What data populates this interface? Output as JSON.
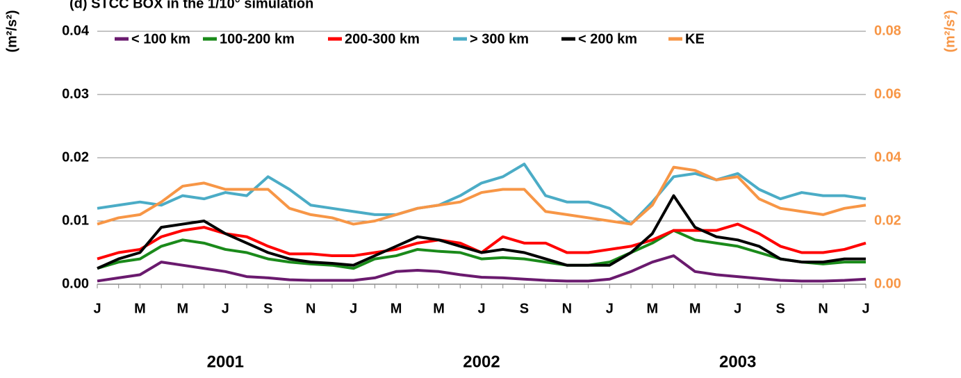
{
  "chart_data": {
    "type": "line",
    "title": "(d)  STCC BOX in the 1/10° simulation",
    "y_label": "(m²/s²)",
    "y2_label": "(m²/s²)",
    "categories": [
      "J",
      null,
      "M",
      null,
      "M",
      null,
      "J",
      null,
      "S",
      null,
      "N",
      null,
      "J",
      null,
      "M",
      null,
      "M",
      null,
      "J",
      null,
      "S",
      null,
      "N",
      null,
      "J",
      null,
      "M",
      null,
      "M",
      null,
      "J",
      null,
      "S",
      null,
      "N",
      null,
      "J"
    ],
    "year_labels": [
      "2001",
      "2002",
      "2003"
    ],
    "ylim": [
      0,
      0.04
    ],
    "yticks": [
      {
        "value": 0,
        "label": "0.00"
      },
      {
        "value": 0.01,
        "label": "0.01"
      },
      {
        "value": 0.02,
        "label": "0.02"
      },
      {
        "value": 0.03,
        "label": "0.03"
      },
      {
        "value": 0.04,
        "label": "0.04"
      }
    ],
    "y2lim": [
      0,
      0.08
    ],
    "y2ticks": [
      {
        "value": 0,
        "label": "0.00"
      },
      {
        "value": 0.02,
        "label": "0.02"
      },
      {
        "value": 0.04,
        "label": "0.04"
      },
      {
        "value": 0.06,
        "label": "0.06"
      },
      {
        "value": 0.08,
        "label": "0.08"
      }
    ],
    "y2_color": "#f79646",
    "grid": true,
    "legend": "top",
    "series": [
      {
        "name": "< 100 km",
        "color": "#6a1a6e",
        "values": [
          0.0005,
          0.001,
          0.0015,
          0.0035,
          0.003,
          0.0025,
          0.002,
          0.0012,
          0.001,
          0.0007,
          0.0006,
          0.0006,
          0.0006,
          0.001,
          0.002,
          0.0022,
          0.002,
          0.0015,
          0.0011,
          0.001,
          0.0008,
          0.0006,
          0.0005,
          0.0005,
          0.0008,
          0.002,
          0.0035,
          0.0045,
          0.002,
          0.0015,
          0.0012,
          0.0009,
          0.0006,
          0.0005,
          0.0005,
          0.0006,
          0.0008
        ]
      },
      {
        "name": "100-200 km",
        "color": "#1a8a1a",
        "values": [
          0.0025,
          0.0035,
          0.004,
          0.006,
          0.007,
          0.0065,
          0.0055,
          0.005,
          0.004,
          0.0035,
          0.0032,
          0.003,
          0.0025,
          0.004,
          0.0045,
          0.0055,
          0.0052,
          0.005,
          0.004,
          0.0042,
          0.004,
          0.0035,
          0.003,
          0.003,
          0.0035,
          0.005,
          0.0065,
          0.0085,
          0.007,
          0.0065,
          0.006,
          0.005,
          0.004,
          0.0035,
          0.0032,
          0.0035,
          0.0035
        ]
      },
      {
        "name": "200-300 km",
        "color": "#ff0000",
        "values": [
          0.004,
          0.005,
          0.0055,
          0.0075,
          0.0085,
          0.009,
          0.008,
          0.0075,
          0.006,
          0.0048,
          0.0048,
          0.0045,
          0.0045,
          0.005,
          0.0055,
          0.0065,
          0.007,
          0.0065,
          0.005,
          0.0075,
          0.0065,
          0.0065,
          0.005,
          0.005,
          0.0055,
          0.006,
          0.007,
          0.0085,
          0.0085,
          0.0085,
          0.0095,
          0.008,
          0.006,
          0.005,
          0.005,
          0.0055,
          0.0065
        ]
      },
      {
        "name": "> 300 km",
        "color": "#4bacc6",
        "values": [
          0.012,
          0.0125,
          0.013,
          0.0125,
          0.014,
          0.0135,
          0.0145,
          0.014,
          0.017,
          0.015,
          0.0125,
          0.012,
          0.0115,
          0.011,
          0.011,
          0.012,
          0.0125,
          0.014,
          0.016,
          0.017,
          0.019,
          0.014,
          0.013,
          0.013,
          0.012,
          0.0095,
          0.013,
          0.017,
          0.0175,
          0.0165,
          0.0175,
          0.015,
          0.0135,
          0.0145,
          0.014,
          0.014,
          0.0135
        ]
      },
      {
        "name": "< 200 km",
        "color": "#000000",
        "values": [
          0.0025,
          0.004,
          0.005,
          0.009,
          0.0095,
          0.01,
          0.008,
          0.0065,
          0.005,
          0.004,
          0.0035,
          0.0033,
          0.003,
          0.0045,
          0.006,
          0.0075,
          0.007,
          0.006,
          0.005,
          0.0055,
          0.005,
          0.004,
          0.003,
          0.003,
          0.003,
          0.005,
          0.008,
          0.014,
          0.009,
          0.0075,
          0.007,
          0.006,
          0.004,
          0.0035,
          0.0035,
          0.004,
          0.004
        ]
      },
      {
        "name": "KE",
        "color": "#f79646",
        "axis": "y2",
        "values": [
          0.019,
          0.021,
          0.022,
          0.026,
          0.031,
          0.032,
          0.03,
          0.03,
          0.03,
          0.024,
          0.022,
          0.021,
          0.019,
          0.02,
          0.022,
          0.024,
          0.025,
          0.026,
          0.029,
          0.03,
          0.03,
          0.023,
          0.022,
          0.021,
          0.02,
          0.019,
          0.025,
          0.037,
          0.036,
          0.033,
          0.034,
          0.027,
          0.024,
          0.023,
          0.022,
          0.024,
          0.025
        ]
      }
    ]
  }
}
